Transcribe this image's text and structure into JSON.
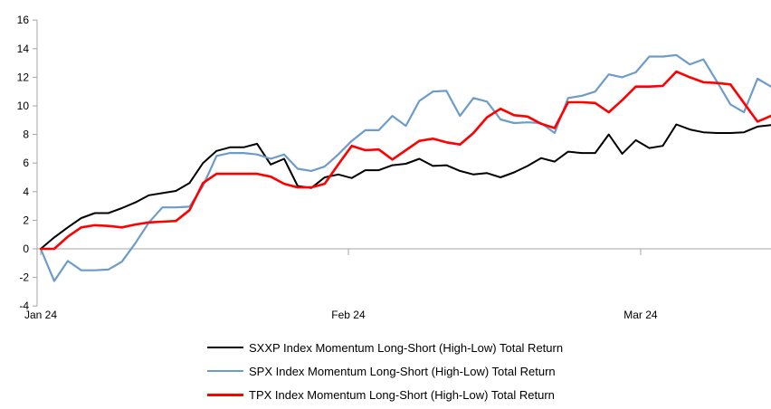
{
  "chart_data": {
    "type": "line",
    "title": "",
    "xlabel": "",
    "ylabel": "",
    "ylim": [
      -4,
      16
    ],
    "y_step": 2,
    "y_tick_labels": [
      "16",
      "14",
      "12",
      "10",
      "8",
      "6",
      "4",
      "2",
      "0",
      "-2",
      "-4"
    ],
    "x_tick_labels": [
      "Jan 24",
      "Feb 24",
      "Mar 24"
    ],
    "x_tick_positions": [
      0,
      22.75,
      44.36
    ],
    "grid": "zero-line-only",
    "legend_position": "bottom",
    "axis_color": "#a6a6a6",
    "zero_line_color": "#a6a6a6",
    "series": [
      {
        "name": "SXXP Index Momentum Long-Short (High-Low) Total Return",
        "color": "#000000",
        "stroke_width": 2,
        "values": [
          0.0,
          0.8,
          1.5,
          2.15,
          2.5,
          2.5,
          2.85,
          3.25,
          3.75,
          3.9,
          4.05,
          4.6,
          6.0,
          6.85,
          7.1,
          7.1,
          7.35,
          5.9,
          6.3,
          4.4,
          4.25,
          5.0,
          5.2,
          4.95,
          5.5,
          5.5,
          5.85,
          5.95,
          6.3,
          5.8,
          5.85,
          5.45,
          5.2,
          5.3,
          5.0,
          5.35,
          5.8,
          6.35,
          6.1,
          6.8,
          6.7,
          6.7,
          8.0,
          6.65,
          7.6,
          7.05,
          7.2,
          8.7,
          8.35,
          8.15,
          8.1,
          8.1,
          8.15,
          8.55,
          8.65
        ]
      },
      {
        "name": "SPX Index Momentum Long-Short (High-Low) Total Return",
        "color": "#6d9cca",
        "stroke_width": 2.2,
        "values": [
          0.0,
          -2.25,
          -0.85,
          -1.5,
          -1.5,
          -1.45,
          -0.9,
          0.4,
          1.85,
          2.9,
          2.9,
          2.95,
          4.4,
          6.5,
          6.7,
          6.7,
          6.6,
          6.3,
          6.6,
          5.6,
          5.45,
          5.75,
          6.6,
          7.55,
          8.3,
          8.3,
          9.3,
          8.6,
          10.35,
          11.0,
          11.05,
          9.3,
          10.55,
          10.3,
          9.05,
          8.8,
          8.85,
          8.8,
          8.1,
          10.55,
          10.7,
          11.0,
          12.2,
          12.0,
          12.35,
          13.45,
          13.45,
          13.55,
          12.9,
          13.25,
          11.7,
          10.1,
          9.55,
          11.9,
          11.35
        ]
      },
      {
        "name": "TPX Index Momentum Long-Short (High-Low) Total Return",
        "color": "#ff0000",
        "stroke_width": 2.6,
        "values": [
          0.0,
          0.0,
          0.85,
          1.5,
          1.65,
          1.6,
          1.5,
          1.7,
          1.85,
          1.9,
          1.95,
          2.7,
          4.6,
          5.25,
          5.25,
          5.25,
          5.25,
          5.05,
          4.55,
          4.3,
          4.3,
          4.55,
          5.9,
          7.2,
          6.9,
          6.95,
          6.25,
          6.9,
          7.55,
          7.7,
          7.45,
          7.3,
          8.1,
          9.2,
          9.8,
          9.35,
          9.25,
          8.75,
          8.45,
          10.25,
          10.25,
          10.2,
          9.55,
          10.4,
          11.35,
          11.35,
          11.4,
          12.4,
          12.0,
          11.65,
          11.6,
          11.5,
          10.2,
          8.9,
          9.3
        ]
      }
    ]
  }
}
